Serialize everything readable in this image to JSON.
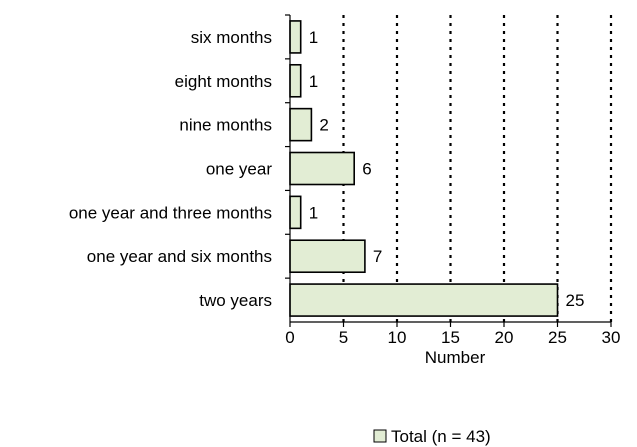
{
  "chart_data": {
    "type": "bar",
    "orientation": "horizontal",
    "categories": [
      "six months",
      "eight months",
      "nine months",
      "one year",
      "one year and three months",
      "one year and six months",
      "two years"
    ],
    "series": [
      {
        "name": "Total (n = 43)",
        "values": [
          1,
          1,
          2,
          6,
          1,
          7,
          25
        ]
      }
    ],
    "xlabel": "Number",
    "xlim": [
      0,
      30
    ],
    "xticks": [
      0,
      5,
      10,
      15,
      20,
      25,
      30
    ],
    "grid": "vertical dotted",
    "legend_position": "bottom-right",
    "colors": {
      "bar_fill": "#e2edd4",
      "bar_stroke": "#000000",
      "grid": "#000000"
    }
  }
}
